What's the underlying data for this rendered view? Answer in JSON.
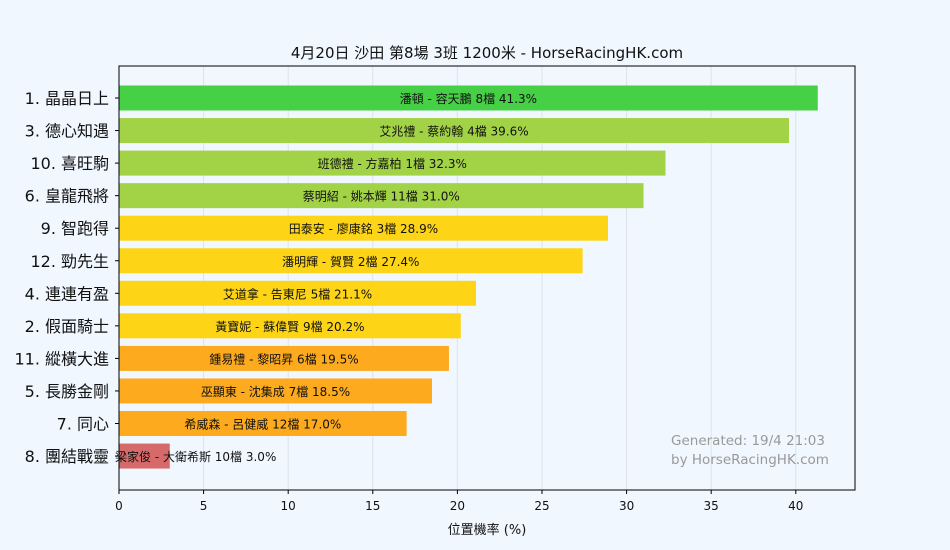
{
  "chart_data": {
    "type": "bar",
    "orientation": "horizontal",
    "title": "4月20日  沙田  第8場  3班  1200米 - HorseRacingHK.com",
    "xlabel": "位置機率 (%)",
    "xlim": [
      0,
      43.5
    ],
    "xticks": [
      0,
      5,
      10,
      15,
      20,
      25,
      30,
      35,
      40
    ],
    "grid": true,
    "categories": [
      "1. 晶晶日上",
      "3. 德心知遇",
      "10. 喜旺駒",
      "6. 皇龍飛將",
      "9. 智跑得",
      "12. 勁先生",
      "4. 連連有盈",
      "2. 假面騎士",
      "11. 縱橫大進",
      "5. 長勝金剛",
      "7. 同心",
      "8. 團結戰靈"
    ],
    "values": [
      41.3,
      39.6,
      32.3,
      31.0,
      28.9,
      27.4,
      21.1,
      20.2,
      19.5,
      18.5,
      17.0,
      3.0
    ],
    "bar_labels": [
      "潘頓 - 容天鵬 8檔  41.3%",
      "艾兆禮 - 蔡約翰 4檔  39.6%",
      "班德禮 - 方嘉柏 1檔  32.3%",
      "蔡明紹 - 姚本輝 11檔  31.0%",
      "田泰安 - 廖康銘 3檔  28.9%",
      "潘明輝 - 賀賢 2檔  27.4%",
      "艾道拿 - 告東尼 5檔  21.1%",
      "黃寶妮 - 蘇偉賢 9檔  20.2%",
      "鍾易禮 - 黎昭昇 6檔  19.5%",
      "巫顯東 - 沈集成 7檔  18.5%",
      "希威森 - 呂健威 12檔  17.0%",
      "梁家俊 - 大衛希斯 10檔  3.0%"
    ],
    "colors": [
      "#46d046",
      "#a2d246",
      "#a2d246",
      "#a2d246",
      "#fdd516",
      "#fdd516",
      "#fdd516",
      "#fdd516",
      "#fdaa1e",
      "#fdaa1e",
      "#fdaa1e",
      "#d66a6a"
    ]
  },
  "watermark": {
    "line1": "Generated: 19/4 21:03",
    "line2": "by HorseRacingHK.com"
  }
}
